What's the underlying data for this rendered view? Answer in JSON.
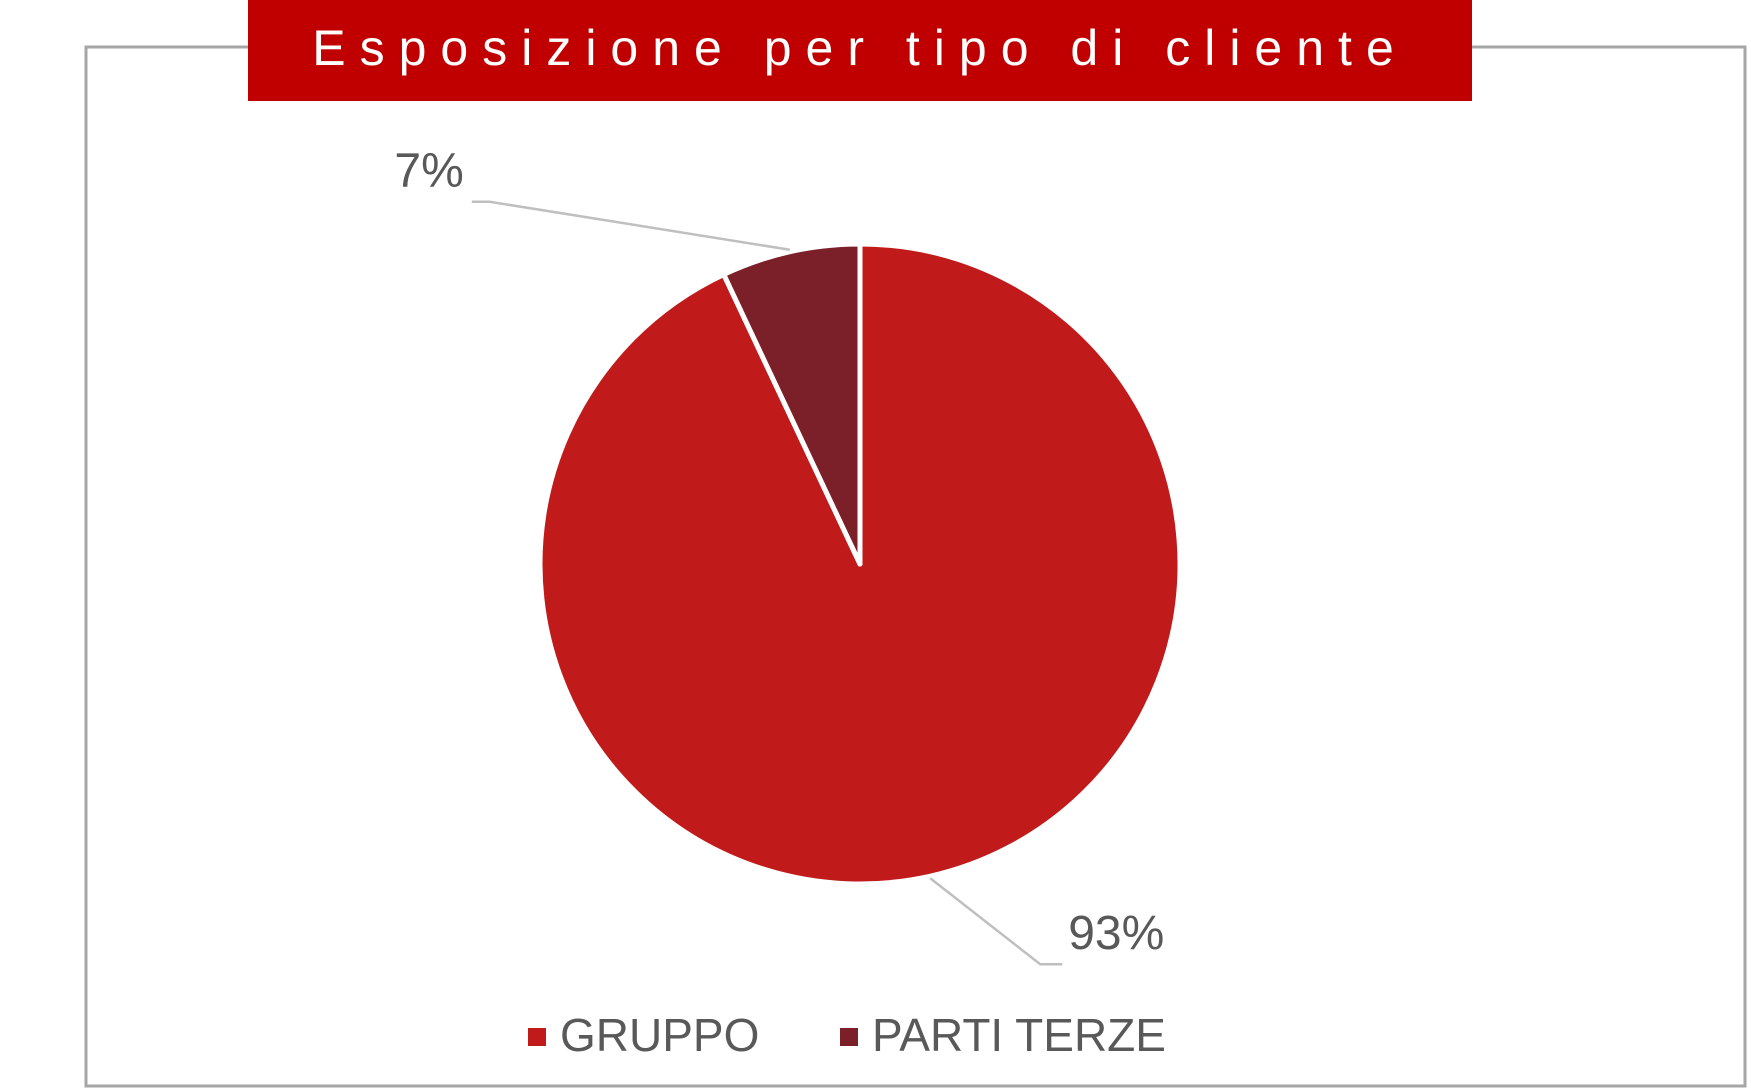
{
  "chart_data": {
    "type": "pie",
    "title": "Esposizione per tipo di cliente",
    "categories": [
      "GRUPPO",
      "PARTI TERZE"
    ],
    "values": [
      93,
      7
    ],
    "value_labels": [
      "93%",
      "7%"
    ],
    "colors": [
      "#c01a1a",
      "#7b1f28"
    ],
    "legend": "bottom"
  }
}
